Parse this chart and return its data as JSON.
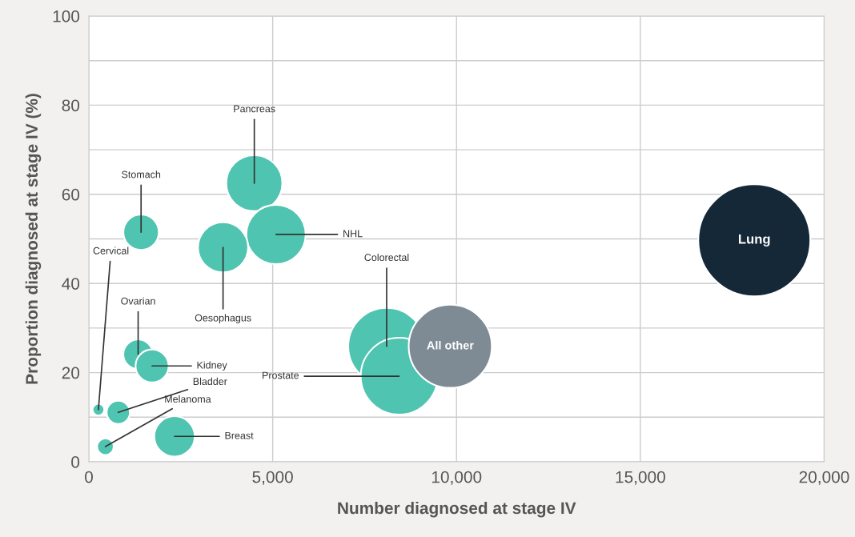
{
  "chart_data": {
    "type": "bubble",
    "xlabel": "Number diagnosed at stage IV",
    "ylabel": "Proportion diagnosed at stage IV (%)",
    "xlim": [
      0,
      20000
    ],
    "ylim": [
      0,
      100
    ],
    "xticks": [
      {
        "value": 0,
        "label": "0"
      },
      {
        "value": 5000,
        "label": "5,000"
      },
      {
        "value": 10000,
        "label": "10,000"
      },
      {
        "value": 15000,
        "label": "15,000"
      },
      {
        "value": 20000,
        "label": "20,000"
      }
    ],
    "yticks": [
      0,
      {
        "value": 10,
        "label": null
      },
      20,
      {
        "value": 30,
        "label": null
      },
      40,
      {
        "value": 50,
        "label": null
      },
      60,
      {
        "value": 70,
        "label": null
      },
      80,
      {
        "value": 90,
        "label": null
      },
      100
    ],
    "grid": true,
    "legend": false,
    "series": [
      {
        "name": "Lung",
        "color": "#152838",
        "x": [
          18100
        ],
        "values": [
          49.7
        ],
        "sizes": [
          1
        ]
      },
      {
        "name": "Colorectal",
        "color": "#4fc4b0",
        "x": [
          8100
        ],
        "values": [
          25.9
        ],
        "sizes": [
          0.47
        ]
      },
      {
        "name": "Prostate",
        "color": "#4fc4b0",
        "x": [
          8440
        ],
        "values": [
          19.2
        ],
        "sizes": [
          0.47
        ]
      },
      {
        "name": "All other",
        "color": "#7f8b94",
        "x": [
          9830
        ],
        "values": [
          25.9
        ],
        "sizes": [
          0.55
        ]
      },
      {
        "name": "Pancreas",
        "color": "#4fc4b0",
        "x": [
          4500
        ],
        "values": [
          62.5
        ],
        "sizes": [
          0.25
        ]
      },
      {
        "name": "NHL",
        "color": "#4fc4b0",
        "x": [
          5090
        ],
        "values": [
          51
        ],
        "sizes": [
          0.28
        ]
      },
      {
        "name": "Oesophagus",
        "color": "#4fc4b0",
        "x": [
          3650
        ],
        "values": [
          48.1
        ],
        "sizes": [
          0.2
        ]
      },
      {
        "name": "Stomach",
        "color": "#4fc4b0",
        "x": [
          1420
        ],
        "values": [
          51.5
        ],
        "sizes": [
          0.1
        ]
      },
      {
        "name": "Ovarian",
        "color": "#4fc4b0",
        "x": [
          1340
        ],
        "values": [
          24.1
        ],
        "sizes": [
          0.07
        ]
      },
      {
        "name": "Kidney",
        "color": "#4fc4b0",
        "x": [
          1720
        ],
        "values": [
          21.5
        ],
        "sizes": [
          0.087
        ]
      },
      {
        "name": "Cervical",
        "color": "#4fc4b0",
        "x": [
          260
        ],
        "values": [
          11.7
        ],
        "sizes": [
          0.011
        ]
      },
      {
        "name": "Bladder",
        "color": "#4fc4b0",
        "x": [
          800
        ],
        "values": [
          11.1
        ],
        "sizes": [
          0.043
        ]
      },
      {
        "name": "Melanoma",
        "color": "#4fc4b0",
        "x": [
          450
        ],
        "values": [
          3.4
        ],
        "sizes": [
          0.022
        ]
      },
      {
        "name": "Breast",
        "color": "#4fc4b0",
        "x": [
          2330
        ],
        "values": [
          5.7
        ],
        "sizes": [
          0.13
        ]
      }
    ]
  }
}
